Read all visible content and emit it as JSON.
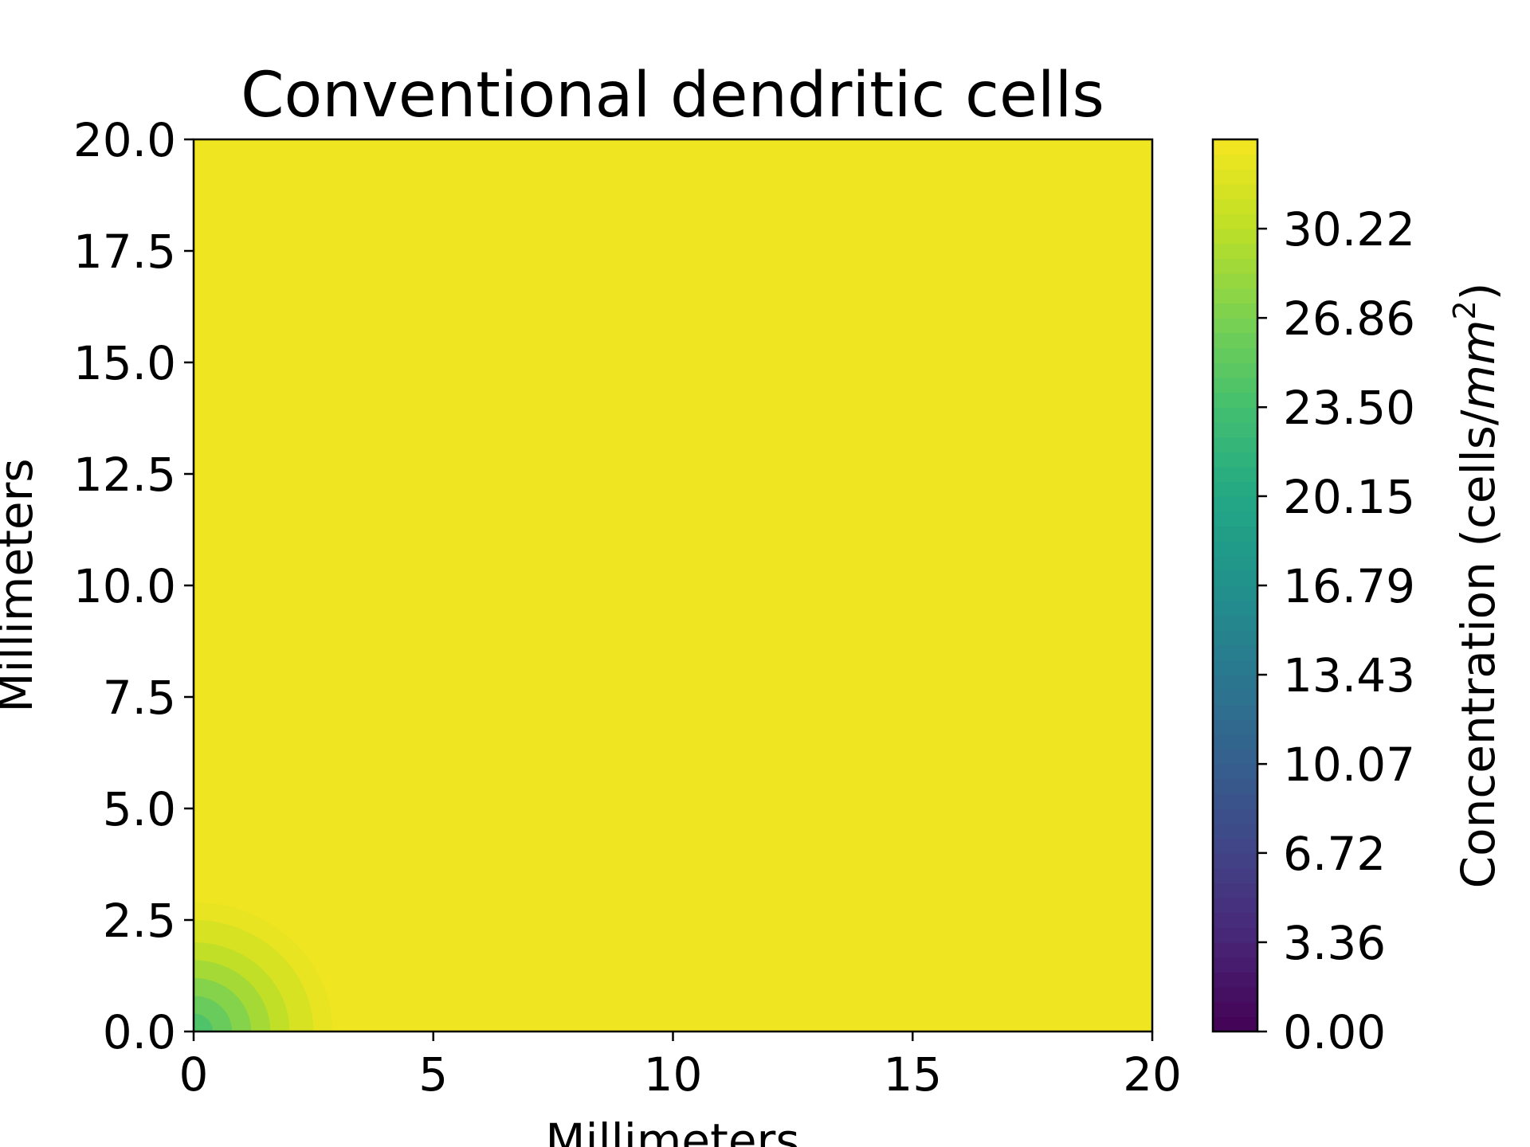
{
  "chart_data": {
    "type": "heatmap",
    "subtype": "filled-contour",
    "title": "Conventional dendritic cells",
    "xlabel": "Millimeters",
    "ylabel": "Millimeters",
    "xlim": [
      0,
      20
    ],
    "ylim": [
      0,
      20
    ],
    "x_ticks": [
      "0",
      "5",
      "10",
      "15",
      "20"
    ],
    "x_tick_values": [
      0,
      5,
      10,
      15,
      20
    ],
    "y_ticks": [
      "0.0",
      "2.5",
      "5.0",
      "7.5",
      "10.0",
      "12.5",
      "15.0",
      "17.5",
      "20.0"
    ],
    "y_tick_values": [
      0,
      2.5,
      5,
      7.5,
      10,
      12.5,
      15,
      17.5,
      20
    ],
    "colormap": "viridis",
    "colorbar": {
      "label_prefix": "Concentration (cells/",
      "label_unit": "mm",
      "label_exp": "2",
      "label_suffix": ")",
      "range": [
        0,
        33.58
      ],
      "ticks": [
        "0.00",
        "3.36",
        "6.72",
        "10.07",
        "13.43",
        "16.79",
        "20.15",
        "23.50",
        "26.86",
        "30.22"
      ],
      "tick_values": [
        0,
        3.36,
        6.72,
        10.07,
        13.43,
        16.79,
        20.15,
        23.5,
        26.86,
        30.22
      ]
    },
    "field": {
      "background_value": 33.2,
      "corner_gradient": [
        {
          "radius_mm": 2.9,
          "value": 32.8
        },
        {
          "radius_mm": 2.5,
          "value": 31.8
        },
        {
          "radius_mm": 2.0,
          "value": 30.4
        },
        {
          "radius_mm": 1.6,
          "value": 29.0
        },
        {
          "radius_mm": 1.2,
          "value": 27.4
        },
        {
          "radius_mm": 0.8,
          "value": 25.8
        },
        {
          "radius_mm": 0.4,
          "value": 24.2
        }
      ]
    }
  }
}
